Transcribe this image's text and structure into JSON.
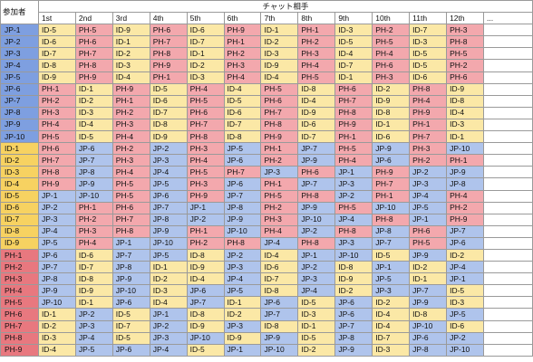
{
  "table": {
    "corner_label": "参加者",
    "group_header": "チャット相手",
    "columns": [
      "1st",
      "2nd",
      "3rd",
      "4th",
      "5th",
      "6th",
      "7th",
      "8th",
      "9th",
      "10th",
      "11th",
      "12th",
      "..."
    ],
    "colors": {
      "JP": {
        "cell": "#afc4ec",
        "participant": "#7e9fe0"
      },
      "ID": {
        "cell": "#fbe8a6",
        "participant": "#f7d261"
      },
      "PH": {
        "cell": "#f3a8ad",
        "participant": "#e8787f"
      }
    },
    "rows": [
      {
        "participant": "JP-1",
        "partners": [
          "ID-5",
          "PH-5",
          "ID-9",
          "PH-6",
          "ID-6",
          "PH-9",
          "ID-1",
          "PH-1",
          "ID-3",
          "PH-2",
          "ID-7",
          "PH-3"
        ]
      },
      {
        "participant": "JP-2",
        "partners": [
          "ID-6",
          "PH-6",
          "ID-1",
          "PH-7",
          "ID-7",
          "PH-1",
          "ID-2",
          "PH-2",
          "ID-5",
          "PH-5",
          "ID-3",
          "PH-8"
        ]
      },
      {
        "participant": "JP-3",
        "partners": [
          "ID-7",
          "PH-7",
          "ID-2",
          "PH-8",
          "ID-1",
          "PH-2",
          "ID-3",
          "PH-3",
          "ID-4",
          "PH-4",
          "ID-5",
          "PH-5"
        ]
      },
      {
        "participant": "JP-4",
        "partners": [
          "ID-8",
          "PH-8",
          "ID-3",
          "PH-9",
          "ID-2",
          "PH-3",
          "ID-9",
          "PH-4",
          "ID-7",
          "PH-6",
          "ID-5",
          "PH-2"
        ]
      },
      {
        "participant": "JP-5",
        "partners": [
          "ID-9",
          "PH-9",
          "ID-4",
          "PH-1",
          "ID-3",
          "PH-4",
          "ID-4",
          "PH-5",
          "ID-1",
          "PH-3",
          "ID-6",
          "PH-6"
        ]
      },
      {
        "participant": "JP-6",
        "partners": [
          "PH-1",
          "ID-1",
          "PH-9",
          "ID-5",
          "PH-4",
          "ID-4",
          "PH-5",
          "ID-8",
          "PH-6",
          "ID-2",
          "PH-8",
          "ID-9"
        ]
      },
      {
        "participant": "JP-7",
        "partners": [
          "PH-2",
          "ID-2",
          "PH-1",
          "ID-6",
          "PH-5",
          "ID-5",
          "PH-6",
          "ID-4",
          "PH-7",
          "ID-9",
          "PH-4",
          "ID-8"
        ]
      },
      {
        "participant": "JP-8",
        "partners": [
          "PH-3",
          "ID-3",
          "PH-2",
          "ID-7",
          "PH-6",
          "ID-6",
          "PH-7",
          "ID-9",
          "PH-8",
          "ID-8",
          "PH-9",
          "ID-4"
        ]
      },
      {
        "participant": "JP-9",
        "partners": [
          "PH-4",
          "ID-4",
          "PH-3",
          "ID-8",
          "PH-7",
          "ID-7",
          "PH-8",
          "ID-6",
          "PH-9",
          "ID-1",
          "PH-1",
          "ID-3"
        ]
      },
      {
        "participant": "JP-10",
        "partners": [
          "PH-5",
          "ID-5",
          "PH-4",
          "ID-9",
          "PH-8",
          "ID-8",
          "PH-9",
          "ID-7",
          "PH-1",
          "ID-6",
          "PH-7",
          "ID-1"
        ]
      },
      {
        "participant": "ID-1",
        "partners": [
          "PH-6",
          "JP-6",
          "PH-2",
          "JP-2",
          "PH-3",
          "JP-5",
          "PH-1",
          "JP-7",
          "PH-5",
          "JP-9",
          "PH-3",
          "JP-10"
        ]
      },
      {
        "participant": "ID-2",
        "partners": [
          "PH-7",
          "JP-7",
          "PH-3",
          "JP-3",
          "PH-4",
          "JP-6",
          "PH-2",
          "JP-9",
          "PH-4",
          "JP-6",
          "PH-2",
          "PH-1"
        ]
      },
      {
        "participant": "ID-3",
        "partners": [
          "PH-8",
          "JP-8",
          "PH-4",
          "JP-4",
          "PH-5",
          "PH-7",
          "JP-3",
          "PH-6",
          "JP-1",
          "PH-9",
          "JP-2",
          "JP-9"
        ]
      },
      {
        "participant": "ID-4",
        "partners": [
          "PH-9",
          "JP-9",
          "PH-5",
          "JP-5",
          "PH-3",
          "JP-6",
          "PH-1",
          "JP-7",
          "JP-3",
          "PH-7",
          "JP-3",
          "JP-8"
        ]
      },
      {
        "participant": "ID-5",
        "partners": [
          "JP-1",
          "JP-10",
          "PH-5",
          "JP-6",
          "PH-9",
          "JP-7",
          "PH-5",
          "PH-8",
          "JP-2",
          "PH-1",
          "JP-4",
          "PH-4"
        ]
      },
      {
        "participant": "ID-6",
        "partners": [
          "JP-2",
          "PH-1",
          "PH-6",
          "JP-7",
          "JP-1",
          "JP-8",
          "PH-2",
          "JP-9",
          "PH-5",
          "JP-10",
          "JP-5",
          "PH-2"
        ]
      },
      {
        "participant": "ID-7",
        "partners": [
          "JP-3",
          "PH-2",
          "PH-7",
          "JP-8",
          "JP-2",
          "JP-9",
          "PH-3",
          "JP-10",
          "JP-4",
          "PH-8",
          "JP-1",
          "PH-9"
        ]
      },
      {
        "participant": "ID-8",
        "partners": [
          "JP-4",
          "PH-3",
          "PH-8",
          "JP-9",
          "PH-1",
          "JP-10",
          "PH-4",
          "JP-2",
          "PH-8",
          "JP-8",
          "PH-6",
          "JP-7"
        ]
      },
      {
        "participant": "ID-9",
        "partners": [
          "JP-5",
          "PH-4",
          "JP-1",
          "JP-10",
          "PH-2",
          "PH-8",
          "JP-4",
          "PH-8",
          "JP-3",
          "JP-7",
          "PH-5",
          "JP-6"
        ]
      },
      {
        "participant": "PH-1",
        "partners": [
          "JP-6",
          "ID-6",
          "JP-7",
          "JP-5",
          "ID-8",
          "JP-2",
          "ID-4",
          "JP-1",
          "JP-10",
          "ID-5",
          "JP-9",
          "ID-2"
        ]
      },
      {
        "participant": "PH-2",
        "partners": [
          "JP-7",
          "ID-7",
          "JP-8",
          "ID-1",
          "ID-9",
          "JP-3",
          "ID-6",
          "JP-2",
          "ID-8",
          "JP-1",
          "ID-2",
          "JP-4"
        ]
      },
      {
        "participant": "PH-3",
        "partners": [
          "JP-8",
          "ID-8",
          "JP-9",
          "ID-2",
          "ID-4",
          "JP-4",
          "ID-7",
          "JP-3",
          "ID-9",
          "JP-5",
          "ID-1",
          "JP-1"
        ]
      },
      {
        "participant": "PH-4",
        "partners": [
          "JP-9",
          "ID-9",
          "JP-10",
          "ID-3",
          "JP-6",
          "JP-5",
          "ID-8",
          "JP-4",
          "ID-2",
          "JP-3",
          "JP-7",
          "ID-5"
        ]
      },
      {
        "participant": "PH-5",
        "partners": [
          "JP-10",
          "ID-1",
          "JP-6",
          "ID-4",
          "JP-7",
          "ID-1",
          "JP-6",
          "ID-5",
          "JP-6",
          "ID-2",
          "JP-9",
          "ID-3"
        ]
      },
      {
        "participant": "PH-6",
        "partners": [
          "ID-1",
          "JP-2",
          "ID-5",
          "JP-1",
          "ID-8",
          "ID-2",
          "JP-7",
          "ID-3",
          "JP-6",
          "ID-4",
          "ID-8",
          "JP-5"
        ]
      },
      {
        "participant": "PH-7",
        "partners": [
          "ID-2",
          "JP-3",
          "ID-7",
          "JP-2",
          "ID-9",
          "JP-3",
          "ID-8",
          "ID-1",
          "JP-7",
          "ID-4",
          "JP-10",
          "ID-6"
        ]
      },
      {
        "participant": "PH-8",
        "partners": [
          "ID-3",
          "JP-4",
          "ID-5",
          "JP-3",
          "JP-10",
          "ID-9",
          "JP-9",
          "ID-5",
          "JP-8",
          "ID-7",
          "JP-6",
          "JP-2"
        ]
      },
      {
        "participant": "PH-9",
        "partners": [
          "ID-4",
          "JP-5",
          "JP-6",
          "JP-4",
          "ID-5",
          "JP-1",
          "JP-10",
          "ID-2",
          "JP-9",
          "ID-3",
          "JP-8",
          "JP-10"
        ]
      }
    ]
  }
}
